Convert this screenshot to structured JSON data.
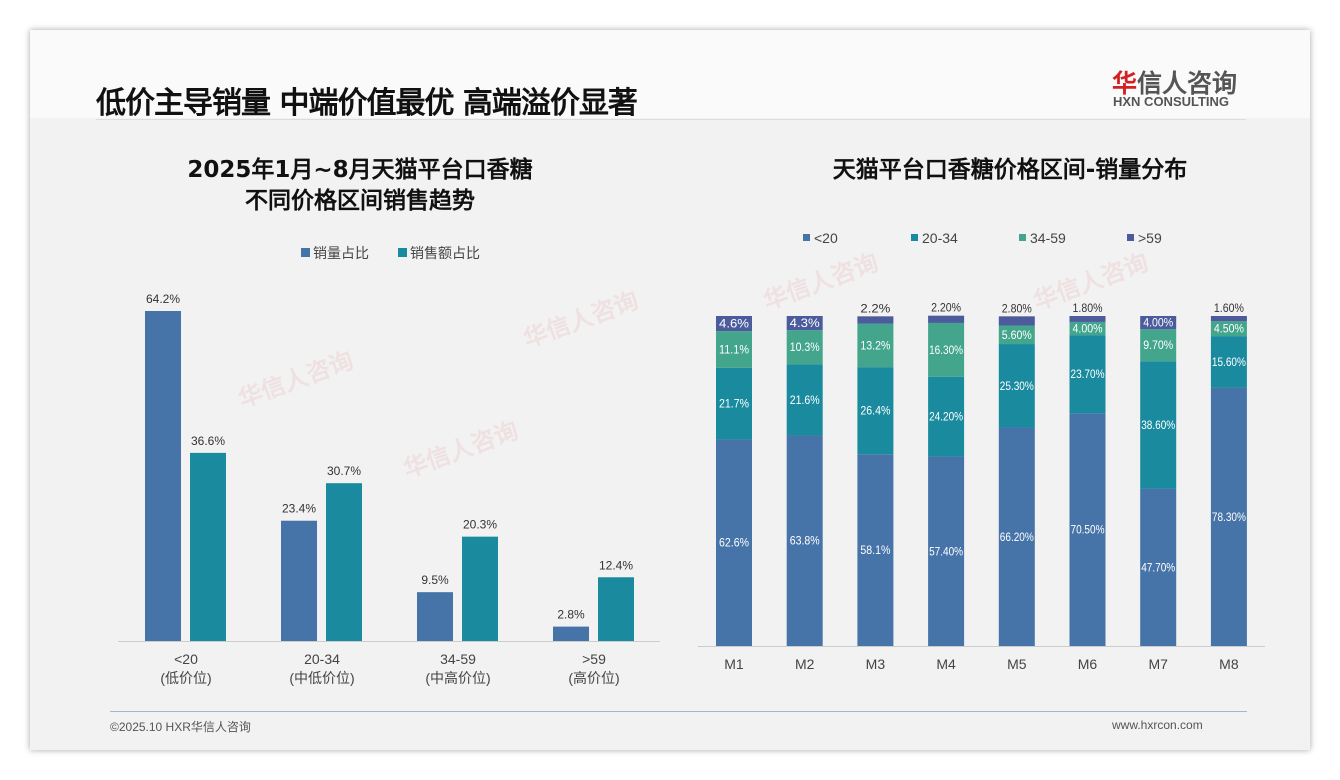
{
  "header": {
    "title": "低价主导销量 中端价值最优 高端溢价显著",
    "logo_cn_red": "华",
    "logo_cn_rest": "信人咨询",
    "logo_en": "HXN CONSULTING"
  },
  "watermark": "华信人咨询",
  "footer": {
    "copyright": "©2025.10 HXR华信人咨询",
    "url": "www.hxrcon.com"
  },
  "colors": {
    "blue": "#4673a8",
    "teal": "#1a8b9f",
    "green": "#42a58c",
    "purple": "#4b5b9c"
  },
  "chart_data": [
    {
      "type": "bar",
      "title_line1": "2025年1月~8月天猫平台口香糖",
      "title_line2": "不同价格区间销售趋势",
      "categories": [
        "<20",
        "20-34",
        "34-59",
        ">59"
      ],
      "category_sub": [
        "(低价位)",
        "(中低价位)",
        "(中高价位)",
        "(高价位)"
      ],
      "series": [
        {
          "name": "销量占比",
          "values": [
            64.2,
            23.4,
            9.5,
            2.8
          ],
          "labels": [
            "64.2%",
            "23.4%",
            "9.5%",
            "2.8%"
          ]
        },
        {
          "name": "销售额占比",
          "values": [
            36.6,
            30.7,
            20.3,
            12.4
          ],
          "labels": [
            "36.6%",
            "30.7%",
            "20.3%",
            "12.4%"
          ]
        }
      ],
      "legend": "top",
      "ylim": [
        0,
        70
      ]
    },
    {
      "type": "bar",
      "stacked": true,
      "title": "天猫平台口香糖价格区间-销量分布",
      "categories": [
        "M1",
        "M2",
        "M3",
        "M4",
        "M5",
        "M6",
        "M7",
        "M8"
      ],
      "series": [
        {
          "name": "<20",
          "values": [
            62.6,
            63.8,
            58.1,
            57.4,
            66.2,
            70.5,
            47.7,
            78.3
          ],
          "labels": [
            "62.6%",
            "63.8%",
            "58.1%",
            "57.40%",
            "66.20%",
            "70.50%",
            "47.70%",
            "78.30%"
          ]
        },
        {
          "name": "20-34",
          "values": [
            21.7,
            21.6,
            26.4,
            24.2,
            25.3,
            23.7,
            38.6,
            15.6
          ],
          "labels": [
            "21.7%",
            "21.6%",
            "26.4%",
            "24.20%",
            "25.30%",
            "23.70%",
            "38.60%",
            "15.60%"
          ]
        },
        {
          "name": "34-59",
          "values": [
            11.1,
            10.3,
            13.2,
            16.3,
            5.6,
            4.0,
            9.7,
            4.5
          ],
          "labels": [
            "11.1%",
            "10.3%",
            "13.2%",
            "16.30%",
            "5.60%",
            "4.00%",
            "9.70%",
            "4.50%"
          ]
        },
        {
          "name": ">59",
          "values": [
            4.6,
            4.3,
            2.2,
            2.2,
            2.8,
            1.8,
            4.0,
            1.6
          ],
          "labels": [
            "4.6%",
            "4.3%",
            "2.2%",
            "2.20%",
            "2.80%",
            "1.80%",
            "4.00%",
            "1.60%"
          ]
        }
      ],
      "legend": "top",
      "ylim": [
        0,
        100
      ]
    }
  ]
}
